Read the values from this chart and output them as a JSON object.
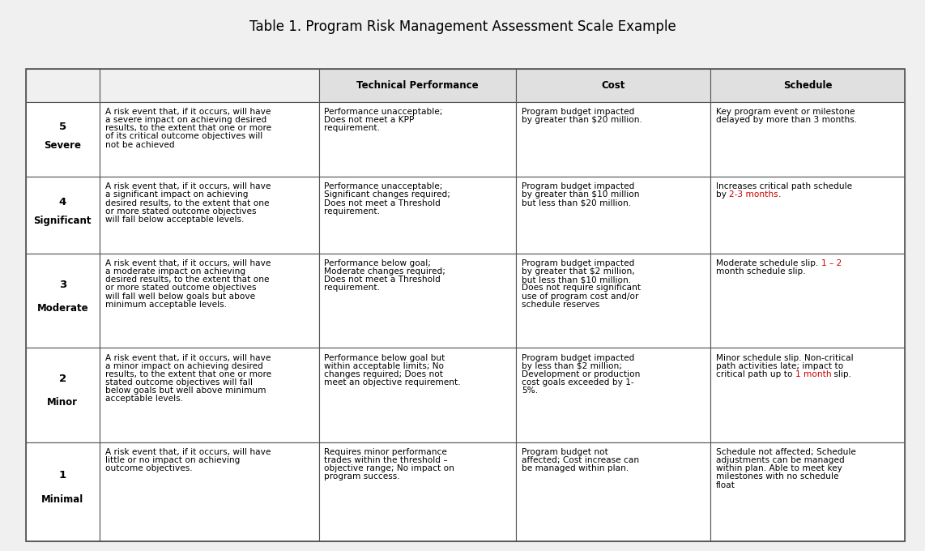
{
  "title": "Table 1. Program Risk Management Assessment Scale Example",
  "bg": "#f0f0f0",
  "cell_bg": "#ffffff",
  "header_bg": "#e0e0e0",
  "border_color": "#555555",
  "text_color": "#000000",
  "red_color": "#cc0000",
  "rows": [
    {
      "num": "5",
      "name": "Severe",
      "desc": "A risk event that, if it occurs, will have\na severe impact on achieving desired\nresults, to the extent that one or more\nof its critical outcome objectives will\nnot be achieved",
      "tech": [
        {
          "t": "Performance unacceptable;\nDoes not meet a KPP\nrequirement.",
          "c": "black"
        }
      ],
      "cost": [
        {
          "t": "Program budget impacted\nby greater than $20 million.",
          "c": "black"
        }
      ],
      "sched": [
        {
          "t": "Key program event or milestone\ndelayed by more than 3 months.",
          "c": "black"
        }
      ]
    },
    {
      "num": "4",
      "name": "Significant",
      "desc": "A risk event that, if it occurs, will have\na significant impact on achieving\ndesired results, to the extent that one\nor more stated outcome objectives\nwill fall below acceptable levels.",
      "tech": [
        {
          "t": "Performance unacceptable;\nSignificant changes required;\nDoes not meet a Threshold\nrequirement.",
          "c": "black"
        }
      ],
      "cost": [
        {
          "t": "Program budget impacted\nby greater than $10 million\nbut less than $20 million.",
          "c": "black"
        }
      ],
      "sched": [
        {
          "t": "Increases critical path schedule\nby ",
          "c": "black"
        },
        {
          "t": "2-3 months",
          "c": "red"
        },
        {
          "t": ".",
          "c": "black"
        }
      ]
    },
    {
      "num": "3",
      "name": "Moderate",
      "desc": "A risk event that, if it occurs, will have\na moderate impact on achieving\ndesired results, to the extent that one\nor more stated outcome objectives\nwill fall well below goals but above\nminimum acceptable levels.",
      "tech": [
        {
          "t": "Performance below goal;\nModerate changes required;\nDoes not meet a Threshold\nrequirement.",
          "c": "black"
        }
      ],
      "cost": [
        {
          "t": "Program budget impacted\nby greater that $2 million,\nbut less than $10 million.\nDoes not require significant\nuse of program cost and/or\nschedule reserves",
          "c": "black"
        }
      ],
      "sched": [
        {
          "t": "Moderate schedule slip. ",
          "c": "black"
        },
        {
          "t": "1 – 2",
          "c": "red"
        },
        {
          "t": "\nmonth schedule slip.",
          "c": "black"
        }
      ]
    },
    {
      "num": "2",
      "name": "Minor",
      "desc": "A risk event that, if it occurs, will have\na minor impact on achieving desired\nresults, to the extent that one or more\nstated outcome objectives will fall\nbelow goals but well above minimum\nacceptable levels.",
      "tech": [
        {
          "t": "Performance below goal but\nwithin acceptable limits; No\nchanges required; Does not\nmeet an objective requirement.",
          "c": "black"
        }
      ],
      "cost": [
        {
          "t": "Program budget impacted\nby less than $2 million;\nDevelopment or production\ncost goals exceeded by 1-\n5%.",
          "c": "black"
        }
      ],
      "sched": [
        {
          "t": "Minor schedule slip. Non-critical\npath activities late; impact to\ncritical path up to ",
          "c": "black"
        },
        {
          "t": "1 month",
          "c": "red"
        },
        {
          "t": " slip.",
          "c": "black"
        }
      ]
    },
    {
      "num": "1",
      "name": "Minimal",
      "desc": "A risk event that, if it occurs, will have\nlittle or no impact on achieving\noutcome objectives.",
      "tech": [
        {
          "t": "Requires minor performance\ntrades within the threshold –\nobjective range; No impact on\nprogram success.",
          "c": "black"
        }
      ],
      "cost": [
        {
          "t": "Program budget not\naffected; Cost increase can\nbe managed within plan.",
          "c": "black"
        }
      ],
      "sched": [
        {
          "t": "Schedule not affected; Schedule\nadjustments can be managed\nwithin plan. Able to meet key\nmilestones with no schedule\nfloat",
          "c": "black"
        }
      ]
    }
  ]
}
